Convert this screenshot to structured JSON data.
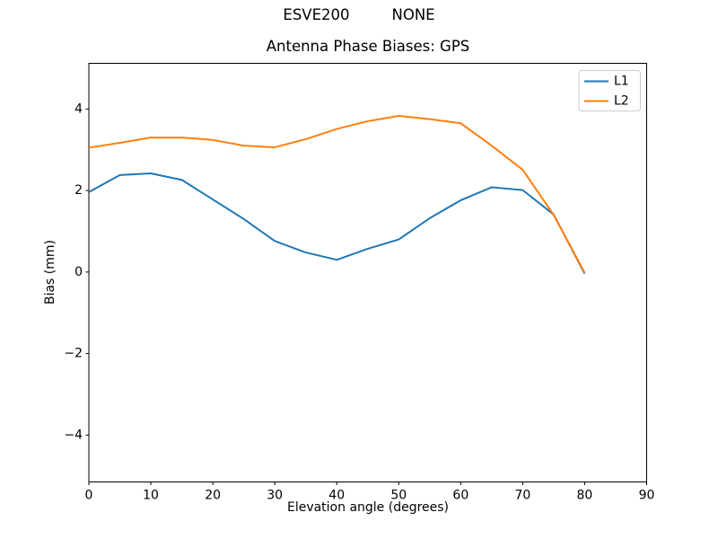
{
  "figure": {
    "suptitle_left": "ESVE200",
    "suptitle_right": "NONE"
  },
  "chart_data": {
    "type": "line",
    "title": "Antenna Phase Biases: GPS",
    "xlabel": "Elevation angle (degrees)",
    "ylabel": "Bias (mm)",
    "x": [
      0,
      5,
      10,
      15,
      20,
      25,
      30,
      35,
      40,
      45,
      50,
      55,
      60,
      65,
      70,
      75,
      80
    ],
    "series": [
      {
        "name": "L1",
        "color": "#1f77b4",
        "values": [
          1.96,
          2.38,
          2.42,
          2.26,
          1.78,
          1.3,
          0.76,
          0.48,
          0.3,
          0.57,
          0.8,
          1.32,
          1.76,
          2.08,
          2.01,
          1.41,
          -0.04
        ]
      },
      {
        "name": "L2",
        "color": "#ff7f0e",
        "values": [
          3.05,
          3.17,
          3.3,
          3.3,
          3.24,
          3.1,
          3.06,
          3.26,
          3.51,
          3.7,
          3.83,
          3.75,
          3.65,
          3.1,
          2.51,
          1.4,
          -0.02
        ]
      }
    ],
    "xlim": [
      0,
      90
    ],
    "ylim": [
      -5.15,
      5.12
    ],
    "x_ticks": [
      0,
      10,
      20,
      30,
      40,
      50,
      60,
      70,
      80,
      90
    ],
    "x_tick_labels": [
      "0",
      "10",
      "20",
      "30",
      "40",
      "50",
      "60",
      "70",
      "80",
      "90"
    ],
    "y_ticks": [
      -4,
      -2,
      0,
      2,
      4
    ],
    "y_tick_labels": [
      "−4",
      "−2",
      "0",
      "2",
      "4"
    ],
    "legend": {
      "position": "upper right",
      "entries": [
        "L1",
        "L2"
      ],
      "border_color": "#cccccc",
      "background": "#ffffff"
    },
    "grid": false,
    "axis_color": "#000000",
    "background": "#ffffff"
  }
}
